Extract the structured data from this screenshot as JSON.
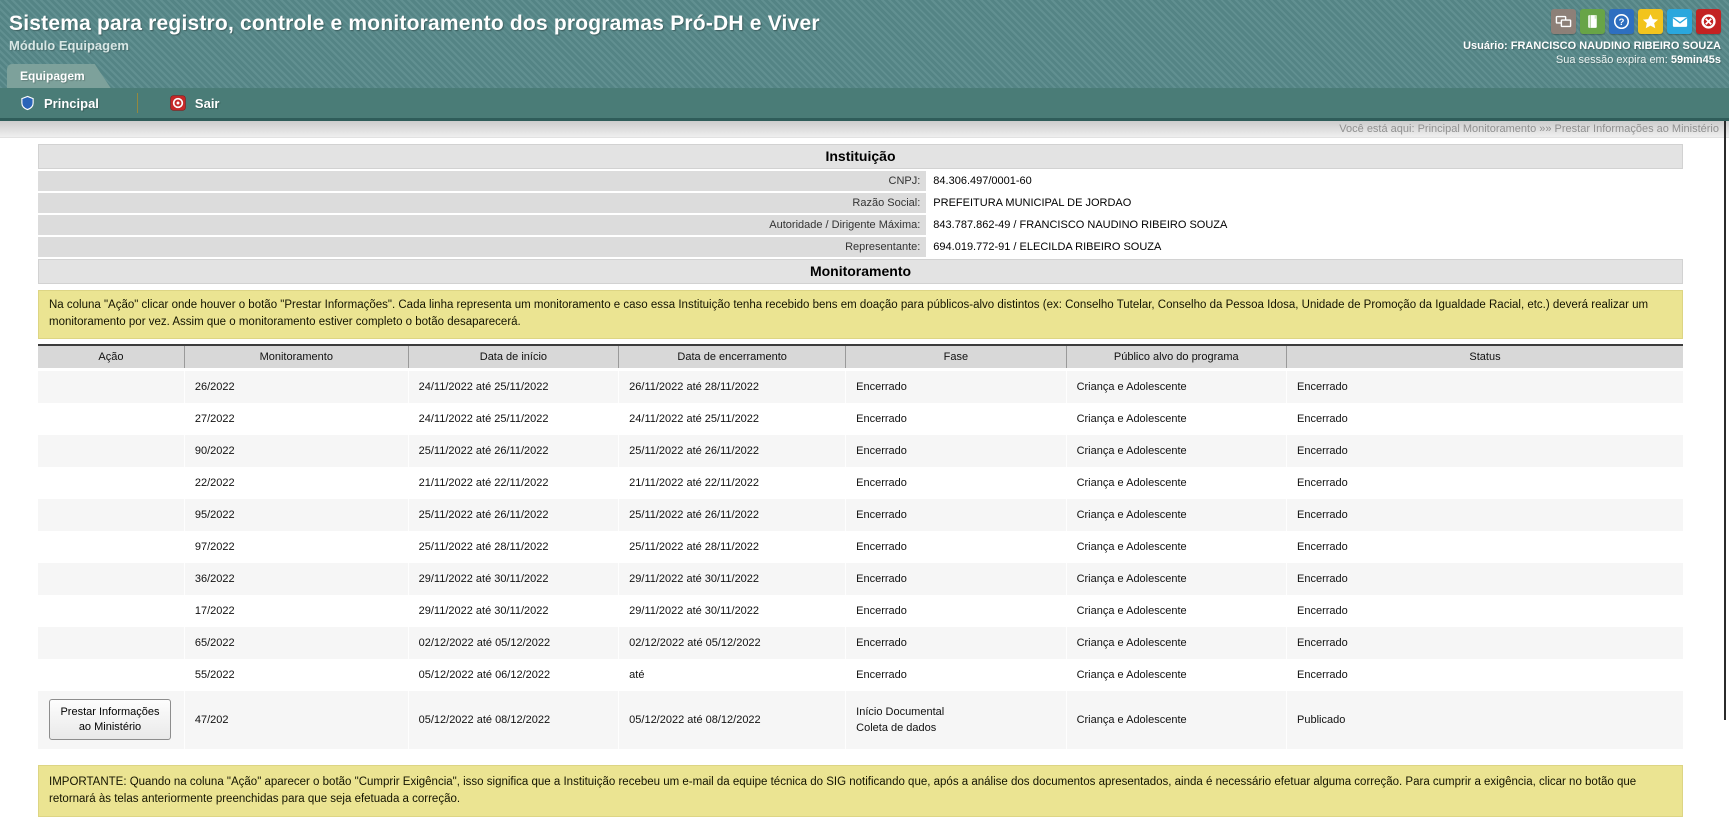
{
  "theme": {
    "header-teal": "#57898a",
    "menubar-green": "#4a7c77",
    "tab-green": "#7da19b",
    "note-yellow": "#ebe492",
    "table-header-gray": "#d8d8d8",
    "row-alt-gray": "#f6f6f6",
    "section-title-gray": "#e3e3e3",
    "label-cell-gray": "#dcdcdc"
  },
  "header": {
    "title": "Sistema para registro, controle e monitoramento dos programas Pró-DH e Viver",
    "subtitle": "Módulo Equipagem",
    "user_label": "Usuário: FRANCISCO NAUDINO RIBEIRO SOUZA",
    "session_label": "Sua sessão expira em:",
    "session_time": "59min45s",
    "icons": [
      "screen-icon",
      "book-icon",
      "help-icon",
      "star-icon",
      "mail-icon",
      "exit-icon"
    ]
  },
  "tabs": [
    {
      "label": "Equipagem"
    }
  ],
  "menu": [
    {
      "label": "Principal"
    },
    {
      "label": "Sair"
    }
  ],
  "breadcrumb": "Você está aqui: Principal Monitoramento »» Prestar Informações ao Ministério",
  "institution": {
    "title": "Instituição",
    "fields": [
      {
        "label": "CNPJ:",
        "value": "84.306.497/0001-60"
      },
      {
        "label": "Razão Social:",
        "value": "PREFEITURA MUNICIPAL DE JORDAO"
      },
      {
        "label": "Autoridade / Dirigente Máxima:",
        "value": "843.787.862-49 / FRANCISCO NAUDINO RIBEIRO SOUZA"
      },
      {
        "label": "Representante:",
        "value": "694.019.772-91 / ELECILDA RIBEIRO SOUZA"
      }
    ]
  },
  "monitoring": {
    "title": "Monitoramento",
    "note": "Na coluna \"Ação\" clicar onde houver o botão \"Prestar Informações\". Cada linha representa um monitoramento e caso essa Instituição tenha recebido bens em doação para públicos-alvo distintos (ex: Conselho Tutelar, Conselho da Pessoa Idosa, Unidade de Promoção da Igualdade Racial, etc.) deverá realizar um monitoramento por vez. Assim que o monitoramento estiver completo o botão desaparecerá.",
    "table": {
      "headers": [
        "Ação",
        "Monitoramento",
        "Data de início",
        "Data de encerramento",
        "Fase",
        "Público alvo do programa",
        "Status"
      ],
      "rows": [
        {
          "monitoramento": "26/2022",
          "inicio": "24/11/2022 até 25/11/2022",
          "encerramento": "26/11/2022 até 28/11/2022",
          "fase": [
            "Encerrado"
          ],
          "publico": "Criança e Adolescente",
          "status": "Encerrado"
        },
        {
          "monitoramento": "27/2022",
          "inicio": "24/11/2022 até 25/11/2022",
          "encerramento": "24/11/2022 até 25/11/2022",
          "fase": [
            "Encerrado"
          ],
          "publico": "Criança e Adolescente",
          "status": "Encerrado"
        },
        {
          "monitoramento": "90/2022",
          "inicio": "25/11/2022 até 26/11/2022",
          "encerramento": "25/11/2022 até 26/11/2022",
          "fase": [
            "Encerrado"
          ],
          "publico": "Criança e Adolescente",
          "status": "Encerrado"
        },
        {
          "monitoramento": "22/2022",
          "inicio": "21/11/2022 até 22/11/2022",
          "encerramento": "21/11/2022 até 22/11/2022",
          "fase": [
            "Encerrado"
          ],
          "publico": "Criança e Adolescente",
          "status": "Encerrado"
        },
        {
          "monitoramento": "95/2022",
          "inicio": "25/11/2022 até 26/11/2022",
          "encerramento": "25/11/2022 até 26/11/2022",
          "fase": [
            "Encerrado"
          ],
          "publico": "Criança e Adolescente",
          "status": "Encerrado"
        },
        {
          "monitoramento": "97/2022",
          "inicio": "25/11/2022 até 28/11/2022",
          "encerramento": "25/11/2022 até 28/11/2022",
          "fase": [
            "Encerrado"
          ],
          "publico": "Criança e Adolescente",
          "status": "Encerrado"
        },
        {
          "monitoramento": "36/2022",
          "inicio": "29/11/2022 até 30/11/2022",
          "encerramento": "29/11/2022 até 30/11/2022",
          "fase": [
            "Encerrado"
          ],
          "publico": "Criança e Adolescente",
          "status": "Encerrado"
        },
        {
          "monitoramento": "17/2022",
          "inicio": "29/11/2022 até 30/11/2022",
          "encerramento": "29/11/2022 até 30/11/2022",
          "fase": [
            "Encerrado"
          ],
          "publico": "Criança e Adolescente",
          "status": "Encerrado"
        },
        {
          "monitoramento": "65/2022",
          "inicio": "02/12/2022 até 05/12/2022",
          "encerramento": "02/12/2022 até 05/12/2022",
          "fase": [
            "Encerrado"
          ],
          "publico": "Criança e Adolescente",
          "status": "Encerrado"
        },
        {
          "monitoramento": "55/2022",
          "inicio": "05/12/2022 até 06/12/2022",
          "encerramento": "até",
          "fase": [
            "Encerrado"
          ],
          "publico": "Criança e Adolescente",
          "status": "Encerrado"
        },
        {
          "action_button": [
            "Prestar Informações",
            "ao Ministério"
          ],
          "monitoramento": "47/202",
          "inicio": "05/12/2022 até 08/12/2022",
          "encerramento": "05/12/2022 até 08/12/2022",
          "fase": [
            "Início Documental",
            "Coleta de dados"
          ],
          "publico": "Criança e Adolescente",
          "status": "Publicado"
        }
      ]
    },
    "important_note": "IMPORTANTE: Quando na coluna \"Ação\" aparecer o botão \"Cumprir Exigência\", isso significa que a Instituição recebeu um e-mail da equipe técnica do SIG notificando que, após a análise dos documentos apresentados, ainda é necessário efetuar alguma correção. Para cumprir a exigência, clicar no botão que retornará às telas anteriormente preenchidas para que seja efetuada a correção."
  }
}
